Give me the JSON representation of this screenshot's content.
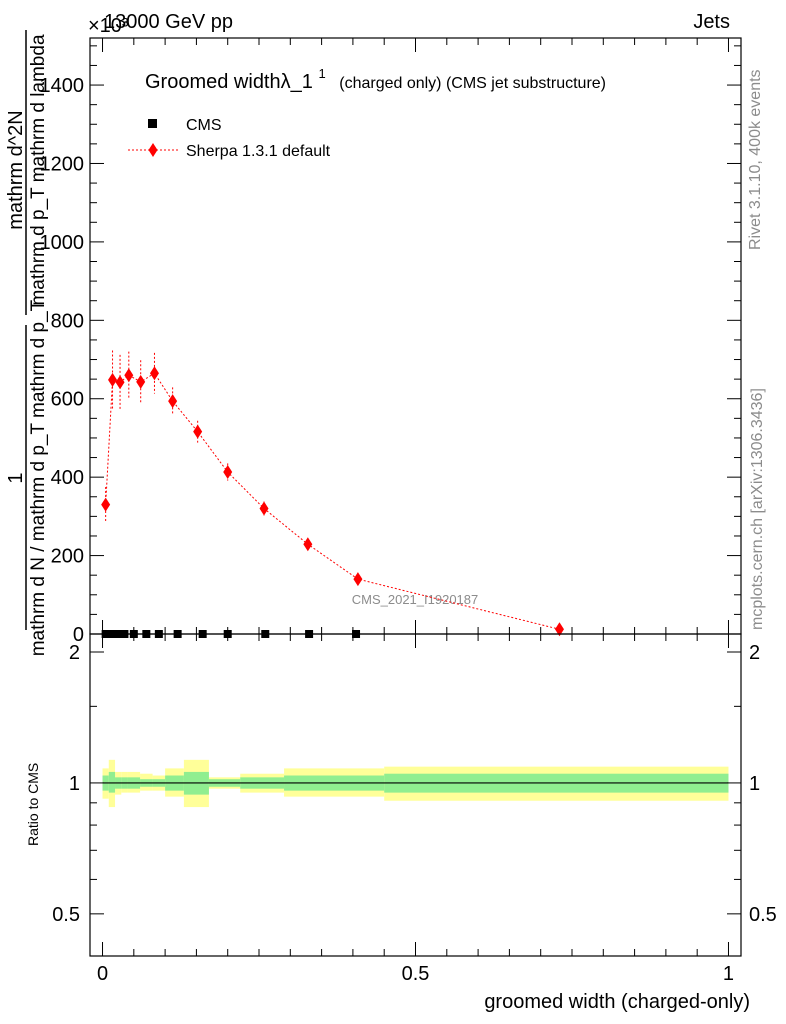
{
  "header": {
    "energy_label": "13000 GeV pp",
    "exponent_label": "×10³",
    "process_label": "Jets"
  },
  "side_labels": {
    "rivet": "Rivet 3.1.10,  400k events",
    "mcplots": "mcplots.cern.ch [arXiv:1306.3436]"
  },
  "chart_data": [
    {
      "type": "scatter",
      "panel": "main",
      "title": "Groomed widthλ_1",
      "title_superscript": "1",
      "subtitle": "(charged only) (CMS jet substructure)",
      "xlim": [
        -0.02,
        1.02
      ],
      "ylim": [
        0,
        1520
      ],
      "ylabel_numer_1": "1",
      "ylabel_denom_1": "mathrm d N / mathrm d p_T mathrm d p_T",
      "ylabel_numer_2": "mathrm d^2N",
      "ylabel_denom_2": "mathrm d p_T mathrm d lambda",
      "y_ticks": [
        0,
        200,
        400,
        600,
        800,
        1000,
        1200,
        1400
      ],
      "y_tick_labels": [
        "0",
        "200",
        "400",
        "600",
        "800",
        "1000",
        "1200",
        "1400"
      ],
      "watermark": "CMS_2021_I1920187",
      "legend_position": "top-left",
      "series": [
        {
          "name": "CMS",
          "color": "#000000",
          "marker": "square",
          "x": [
            0.005,
            0.015,
            0.025,
            0.035,
            0.05,
            0.07,
            0.09,
            0.12,
            0.16,
            0.2,
            0.26,
            0.33,
            0.405
          ],
          "y": [
            0,
            0,
            0,
            0,
            0,
            0,
            0,
            0,
            0,
            0,
            0,
            0,
            0
          ]
        },
        {
          "name": "Sherpa 1.3.1 default",
          "color": "#ff0000",
          "marker": "diamond",
          "x": [
            0.005,
            0.016,
            0.028,
            0.042,
            0.061,
            0.083,
            0.112,
            0.152,
            0.2,
            0.258,
            0.328,
            0.408,
            0.73
          ],
          "y": [
            330,
            648,
            642,
            660,
            643,
            665,
            594,
            516,
            413,
            320,
            229,
            140,
            12
          ],
          "yerr": [
            45,
            75,
            70,
            60,
            55,
            52,
            35,
            28,
            22,
            18,
            14,
            10,
            5
          ]
        }
      ]
    },
    {
      "type": "area",
      "panel": "ratio",
      "xlabel": "groomed width (charged-only)",
      "ylabel": "Ratio to CMS",
      "xlim": [
        -0.02,
        1.02
      ],
      "ylim": [
        0.4,
        2.2
      ],
      "y_scale": "log",
      "y_ticks": [
        0.5,
        1,
        2
      ],
      "y_tick_labels": [
        "0.5",
        "1",
        "2"
      ],
      "x_ticks": [
        0,
        0.5,
        1
      ],
      "x_tick_labels": [
        "0",
        "0.5",
        "1"
      ],
      "reference": 1,
      "bands": [
        {
          "x0": 0.0,
          "x1": 0.01,
          "in_lo": 0.96,
          "in_hi": 1.04,
          "out_lo": 0.92,
          "out_hi": 1.08
        },
        {
          "x0": 0.01,
          "x1": 0.02,
          "in_lo": 0.95,
          "in_hi": 1.06,
          "out_lo": 0.88,
          "out_hi": 1.13
        },
        {
          "x0": 0.02,
          "x1": 0.03,
          "in_lo": 0.97,
          "in_hi": 1.03,
          "out_lo": 0.94,
          "out_hi": 1.06
        },
        {
          "x0": 0.03,
          "x1": 0.04,
          "in_lo": 0.97,
          "in_hi": 1.03,
          "out_lo": 0.95,
          "out_hi": 1.06
        },
        {
          "x0": 0.04,
          "x1": 0.06,
          "in_lo": 0.97,
          "in_hi": 1.03,
          "out_lo": 0.95,
          "out_hi": 1.06
        },
        {
          "x0": 0.06,
          "x1": 0.08,
          "in_lo": 0.98,
          "in_hi": 1.02,
          "out_lo": 0.96,
          "out_hi": 1.05
        },
        {
          "x0": 0.08,
          "x1": 0.1,
          "in_lo": 0.98,
          "in_hi": 1.02,
          "out_lo": 0.96,
          "out_hi": 1.04
        },
        {
          "x0": 0.1,
          "x1": 0.13,
          "in_lo": 0.96,
          "in_hi": 1.04,
          "out_lo": 0.93,
          "out_hi": 1.08
        },
        {
          "x0": 0.13,
          "x1": 0.17,
          "in_lo": 0.94,
          "in_hi": 1.06,
          "out_lo": 0.88,
          "out_hi": 1.13
        },
        {
          "x0": 0.17,
          "x1": 0.22,
          "in_lo": 0.98,
          "in_hi": 1.02,
          "out_lo": 0.97,
          "out_hi": 1.03
        },
        {
          "x0": 0.22,
          "x1": 0.29,
          "in_lo": 0.97,
          "in_hi": 1.03,
          "out_lo": 0.95,
          "out_hi": 1.05
        },
        {
          "x0": 0.29,
          "x1": 0.45,
          "in_lo": 0.96,
          "in_hi": 1.04,
          "out_lo": 0.93,
          "out_hi": 1.08
        },
        {
          "x0": 0.45,
          "x1": 1.0,
          "in_lo": 0.95,
          "in_hi": 1.05,
          "out_lo": 0.91,
          "out_hi": 1.09
        }
      ],
      "band_colors": {
        "inner": "#90ee90",
        "outer": "#ffff99"
      }
    }
  ]
}
